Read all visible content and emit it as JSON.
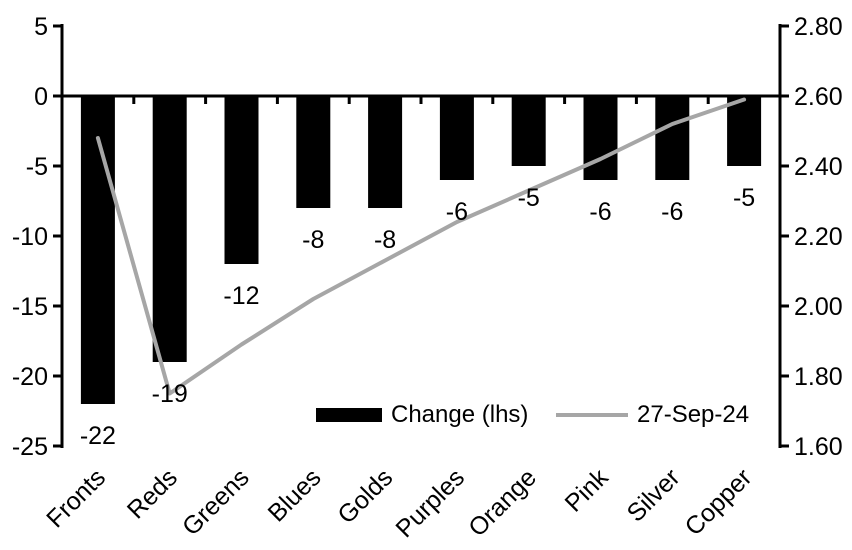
{
  "colors": {
    "background": "#ffffff",
    "bar": "#000000",
    "line": "#a6a6a6",
    "axis": "#000000",
    "text": "#000000"
  },
  "chart_data": {
    "type": "bar",
    "grid": false,
    "categories": [
      "Fronts",
      "Reds",
      "Greens",
      "Blues",
      "Golds",
      "Purples",
      "Orange",
      "Pink",
      "Silver",
      "Copper"
    ],
    "series": [
      {
        "name": "Change (lhs)",
        "type": "bar",
        "axis": "left",
        "color": "#000000",
        "values": [
          -22,
          -19,
          -12,
          -8,
          -8,
          -6,
          -5,
          -6,
          -6,
          -5
        ],
        "data_labels": [
          "-22",
          "-19",
          "-12",
          "-8",
          "-8",
          "-6",
          "-5",
          "-6",
          "-6",
          "-5"
        ]
      },
      {
        "name": "27-Sep-24",
        "type": "line",
        "axis": "right",
        "color": "#a6a6a6",
        "values": [
          2.48,
          1.75,
          1.89,
          2.02,
          2.13,
          2.24,
          2.33,
          2.42,
          2.52,
          2.59
        ]
      }
    ],
    "left_axis": {
      "min": -25,
      "max": 5,
      "tick_step": 5,
      "tick_labels": [
        "5",
        "0",
        "-5",
        "-10",
        "-15",
        "-20",
        "-25"
      ]
    },
    "right_axis": {
      "min": 1.6,
      "max": 2.8,
      "tick_step": 0.2,
      "tick_labels": [
        "2.80",
        "2.60",
        "2.40",
        "2.20",
        "2.00",
        "1.80",
        "1.60"
      ]
    },
    "legend": {
      "position": "inside-bottom",
      "items": [
        {
          "label": "Change (lhs)",
          "swatch": "bar",
          "color": "#000000"
        },
        {
          "label": "27-Sep-24",
          "swatch": "line",
          "color": "#a6a6a6"
        }
      ]
    }
  }
}
